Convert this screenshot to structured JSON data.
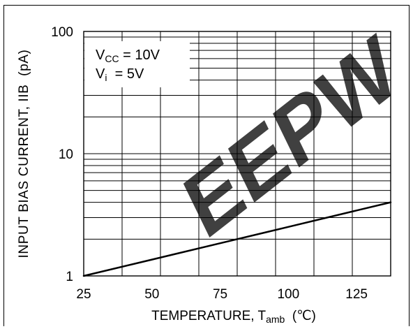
{
  "chart_data": {
    "type": "line",
    "xlabel": {
      "prefix": "TEMPERATURE, T",
      "subscript": "amb",
      "suffix": "  (℃)"
    },
    "ylabel": "INPUT BIAS CURRENT, IIB  (pA)",
    "xlim": [
      25,
      137.5
    ],
    "ylim": [
      1,
      100
    ],
    "yscale": "log",
    "xticks": [
      25,
      50,
      75,
      100,
      125
    ],
    "xtick_labels": [
      "25",
      "50",
      "75",
      "100",
      "125"
    ],
    "yticks": [
      1,
      10,
      100
    ],
    "ytick_labels": [
      "1",
      "10",
      "100"
    ],
    "grid": true,
    "series": [
      {
        "x": [
          25,
          50,
          75,
          100,
          125,
          137.5
        ],
        "y": [
          1.0,
          1.36,
          1.85,
          2.52,
          3.43,
          4.0
        ],
        "color": "#000000"
      }
    ],
    "annotation_placement": "top-left",
    "annotations": [
      {
        "prefix": "V",
        "subscript": "CC",
        "suffix": " = 10V"
      },
      {
        "prefix": "V",
        "subscript": "i",
        "suffix": "  = 5V"
      }
    ]
  },
  "watermark": {
    "text": "EEPW",
    "color": "#e4323c"
  }
}
